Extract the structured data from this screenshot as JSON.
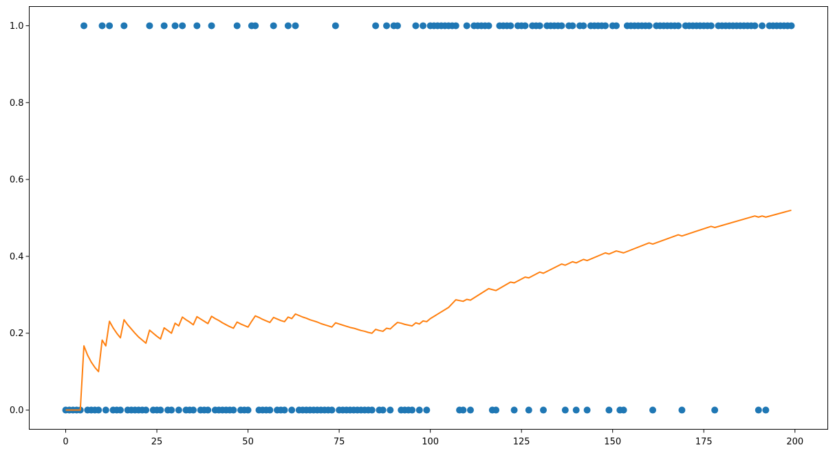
{
  "chart_data": {
    "type": "scatter",
    "title": "",
    "xlabel": "",
    "ylabel": "",
    "xlim": [
      -10,
      209
    ],
    "ylim": [
      -0.05,
      1.05
    ],
    "grid": false,
    "legend": "none",
    "x_ticks": [
      0,
      25,
      50,
      75,
      100,
      125,
      150,
      175,
      200
    ],
    "x_tick_labels": [
      "0",
      "25",
      "50",
      "75",
      "100",
      "125",
      "150",
      "175",
      "200"
    ],
    "y_ticks": [
      0.0,
      0.2,
      0.4,
      0.6,
      0.8,
      1.0
    ],
    "y_tick_labels": [
      "0.0",
      "0.2",
      "0.4",
      "0.6",
      "0.8",
      "1.0"
    ],
    "series": [
      {
        "kind": "scatter",
        "color": "#1f77b4",
        "points_y1_x": [
          5,
          10,
          12,
          16,
          23,
          27,
          30,
          32,
          36,
          40,
          47,
          51,
          52,
          57,
          61,
          63,
          74,
          85,
          88,
          90,
          91,
          96,
          98,
          100,
          101,
          102,
          103,
          104,
          105,
          106,
          107,
          110,
          112,
          113,
          114,
          115,
          116,
          119,
          120,
          121,
          122,
          124,
          125,
          126,
          128,
          129,
          130,
          132,
          133,
          134,
          135,
          136,
          138,
          139,
          141,
          142,
          144,
          145,
          146,
          147,
          148,
          150,
          151,
          154,
          155,
          156,
          157,
          158,
          159,
          160,
          162,
          163,
          164,
          165,
          166,
          167,
          168,
          170,
          171,
          172,
          173,
          174,
          175,
          176,
          177,
          179,
          180,
          181,
          182,
          183,
          184,
          185,
          186,
          187,
          188,
          189,
          191,
          193,
          194,
          195,
          196,
          197,
          198,
          199
        ],
        "points_y0_x": [
          0,
          1,
          2,
          3,
          4,
          6,
          7,
          8,
          9,
          11,
          13,
          14,
          15,
          17,
          18,
          19,
          20,
          21,
          22,
          24,
          25,
          26,
          28,
          29,
          31,
          33,
          34,
          35,
          37,
          38,
          39,
          41,
          42,
          43,
          44,
          45,
          46,
          48,
          49,
          50,
          53,
          54,
          55,
          56,
          58,
          59,
          60,
          62,
          64,
          65,
          66,
          67,
          68,
          69,
          70,
          71,
          72,
          73,
          75,
          76,
          77,
          78,
          79,
          80,
          81,
          82,
          83,
          84,
          86,
          87,
          89,
          92,
          93,
          94,
          95,
          97,
          99,
          108,
          109,
          111,
          117,
          118,
          123,
          127,
          131,
          137,
          140,
          143,
          149,
          152,
          153,
          161,
          169,
          178,
          190,
          192
        ]
      },
      {
        "kind": "line",
        "color": "#ff7f0e",
        "x": [
          0,
          4,
          5,
          6,
          7,
          8,
          9,
          10,
          11,
          12,
          13,
          14,
          15,
          16,
          17,
          18,
          19,
          20,
          21,
          22,
          23,
          24,
          25,
          26,
          27,
          28,
          29,
          30,
          31,
          32,
          33,
          34,
          35,
          36,
          37,
          38,
          39,
          40,
          41,
          42,
          43,
          44,
          45,
          46,
          47,
          48,
          49,
          50,
          51,
          52,
          53,
          54,
          55,
          56,
          57,
          58,
          59,
          60,
          61,
          62,
          63,
          64,
          65,
          66,
          67,
          68,
          69,
          70,
          71,
          72,
          73,
          74,
          75,
          76,
          77,
          78,
          79,
          80,
          81,
          82,
          83,
          84,
          85,
          86,
          87,
          88,
          89,
          90,
          91,
          92,
          93,
          94,
          95,
          96,
          97,
          98,
          99,
          100,
          105,
          107,
          109,
          110,
          111,
          116,
          118,
          122,
          123,
          126,
          127,
          130,
          131,
          136,
          137,
          139,
          140,
          142,
          143,
          148,
          149,
          151,
          153,
          160,
          161,
          168,
          169,
          177,
          178,
          189,
          190,
          191,
          192,
          199
        ],
        "y": [
          0.0,
          0.0,
          0.167,
          0.143,
          0.125,
          0.111,
          0.1,
          0.182,
          0.167,
          0.231,
          0.214,
          0.2,
          0.188,
          0.235,
          0.222,
          0.211,
          0.2,
          0.19,
          0.182,
          0.174,
          0.208,
          0.2,
          0.192,
          0.185,
          0.214,
          0.207,
          0.2,
          0.226,
          0.219,
          0.242,
          0.235,
          0.229,
          0.222,
          0.243,
          0.237,
          0.231,
          0.225,
          0.244,
          0.238,
          0.233,
          0.227,
          0.222,
          0.217,
          0.213,
          0.229,
          0.224,
          0.22,
          0.216,
          0.231,
          0.245,
          0.241,
          0.236,
          0.232,
          0.228,
          0.241,
          0.237,
          0.233,
          0.23,
          0.242,
          0.238,
          0.25,
          0.246,
          0.242,
          0.239,
          0.235,
          0.232,
          0.229,
          0.225,
          0.222,
          0.219,
          0.216,
          0.227,
          0.224,
          0.221,
          0.218,
          0.215,
          0.213,
          0.21,
          0.207,
          0.205,
          0.202,
          0.2,
          0.21,
          0.207,
          0.205,
          0.213,
          0.211,
          0.22,
          0.228,
          0.226,
          0.223,
          0.221,
          0.219,
          0.227,
          0.224,
          0.232,
          0.23,
          0.238,
          0.267,
          0.287,
          0.283,
          0.288,
          0.286,
          0.316,
          0.311,
          0.333,
          0.331,
          0.346,
          0.344,
          0.359,
          0.356,
          0.38,
          0.377,
          0.386,
          0.383,
          0.392,
          0.389,
          0.409,
          0.406,
          0.414,
          0.409,
          0.435,
          0.432,
          0.456,
          0.453,
          0.478,
          0.475,
          0.505,
          0.502,
          0.505,
          0.502,
          0.52
        ]
      }
    ]
  }
}
